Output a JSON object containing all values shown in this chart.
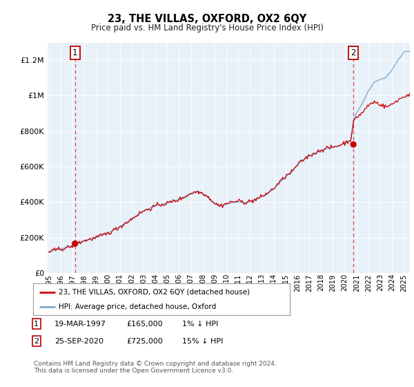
{
  "title": "23, THE VILLAS, OXFORD, OX2 6QY",
  "subtitle": "Price paid vs. HM Land Registry's House Price Index (HPI)",
  "background_color": "#e8f0f8",
  "plot_bg_color": "#e8f0f8",
  "ylim": [
    0,
    1300000
  ],
  "yticks": [
    0,
    200000,
    400000,
    600000,
    800000,
    1000000,
    1200000
  ],
  "ytick_labels": [
    "£0",
    "£200K",
    "£400K",
    "£600K",
    "£800K",
    "£1M",
    "£1.2M"
  ],
  "hpi_color": "#7aadd4",
  "price_color": "#cc0000",
  "sale1_date_x": 1997.21,
  "sale1_price": 165000,
  "sale2_date_x": 2020.73,
  "sale2_price": 725000,
  "legend_line1": "23, THE VILLAS, OXFORD, OX2 6QY (detached house)",
  "legend_line2": "HPI: Average price, detached house, Oxford",
  "footer": "Contains HM Land Registry data © Crown copyright and database right 2024.\nThis data is licensed under the Open Government Licence v3.0.",
  "xmin": 1994.9,
  "xmax": 2025.5,
  "x_years": [
    1995,
    1996,
    1997,
    1998,
    1999,
    2000,
    2001,
    2002,
    2003,
    2004,
    2005,
    2006,
    2007,
    2008,
    2009,
    2010,
    2011,
    2012,
    2013,
    2014,
    2015,
    2016,
    2017,
    2018,
    2019,
    2020,
    2021,
    2022,
    2023,
    2024,
    2025
  ]
}
